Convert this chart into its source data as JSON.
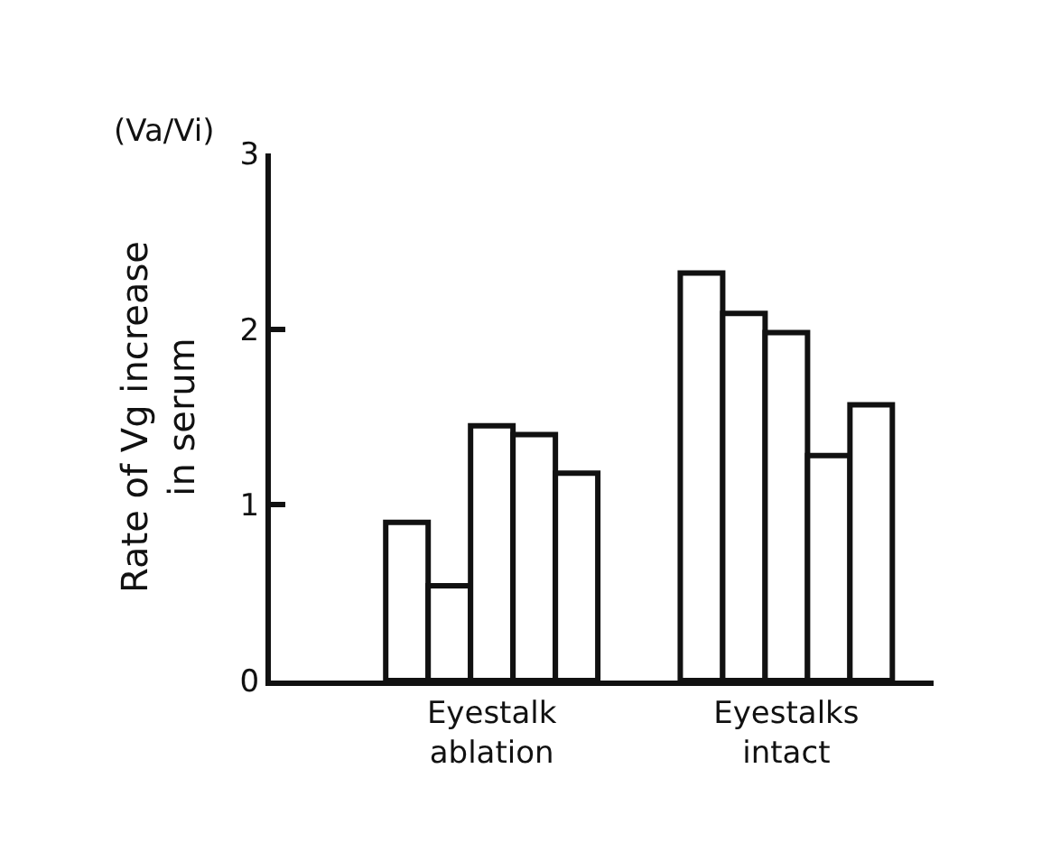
{
  "chart_data": {
    "type": "bar",
    "categories": [
      "Eyestalk\nablation",
      "Eyestalks\nintact"
    ],
    "ylabel": "Rate of Vg increase\nin serum",
    "annotations": [
      "(Va/Vi)"
    ],
    "series": [
      {
        "color": "#ffffff",
        "values": [
          0.9,
          2.32
        ]
      },
      {
        "color": "#ffffff",
        "values": [
          0.54,
          2.09
        ]
      },
      {
        "color": "#ffffff",
        "values": [
          1.45,
          1.98
        ]
      },
      {
        "color": "#ffffff",
        "values": [
          1.4,
          1.28
        ]
      },
      {
        "color": "#ffffff",
        "values": [
          1.18,
          1.57
        ]
      }
    ],
    "ylim": [
      0,
      3
    ],
    "yticks": [
      0,
      1,
      2,
      3
    ],
    "legend": false
  }
}
